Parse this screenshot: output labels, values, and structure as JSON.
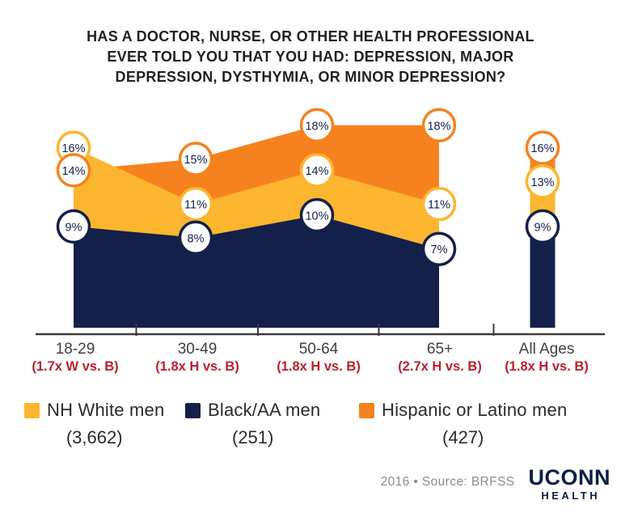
{
  "chart_data": {
    "type": "area",
    "title": "HAS A DOCTOR, NURSE, OR OTHER HEALTH PROFESSIONAL EVER TOLD YOU THAT YOU HAD: DEPRESSION, MAJOR DEPRESSION, DYSTHYMIA, OR MINOR DEPRESSION?",
    "title_lines": [
      "HAS A DOCTOR, NURSE, OR OTHER HEALTH PROFESSIONAL",
      "EVER TOLD YOU THAT YOU HAD: DEPRESSION, MAJOR",
      "DEPRESSION, DYSTHYMIA, OR MINOR DEPRESSION?"
    ],
    "categories": [
      "18-29",
      "30-49",
      "50-64",
      "65+",
      "All Ages"
    ],
    "annotations": [
      "(1.7x W vs. B)",
      "(1.8x H vs. B)",
      "(1.8x H vs. B)",
      "(2.7x H vs. B)",
      "(1.8x H vs. B)"
    ],
    "value_suffix": "%",
    "ylim": [
      0,
      20
    ],
    "legend_position": "bottom",
    "grid": false,
    "series": [
      {
        "key": "nh-white-men",
        "name": "NH White men",
        "count": "(3,662)",
        "color": "#FCB52E",
        "values": [
          16,
          11,
          14,
          11,
          13
        ]
      },
      {
        "key": "black-aa-men",
        "name": "Black/AA men",
        "count": "(251)",
        "color": "#13204A",
        "values": [
          9,
          8,
          10,
          7,
          9
        ]
      },
      {
        "key": "hispanic-latino-men",
        "name": "Hispanic or Latino men",
        "count": "(427)",
        "color": "#F5821F",
        "values": [
          14,
          15,
          18,
          18,
          16
        ]
      }
    ],
    "draw_order_back_to_front": [
      "hispanic-latino-men",
      "nh-white-men",
      "black-aa-men"
    ]
  },
  "footer": {
    "source_line": "2016 • Source: BRFSS",
    "logo_top": "UCONN",
    "logo_bottom": "HEALTH"
  },
  "colors": {
    "background": "#FFFFFF",
    "title-text": "#231F20",
    "axis-label": "#414042",
    "axis-line": "#3B3B3C",
    "annotation-red": "#BE1E2D",
    "circle-text": "#13204A",
    "legend-text": "#2B2B2B",
    "footer-gray": "#8A8C8E",
    "uconn-navy": "#0E1E45"
  }
}
